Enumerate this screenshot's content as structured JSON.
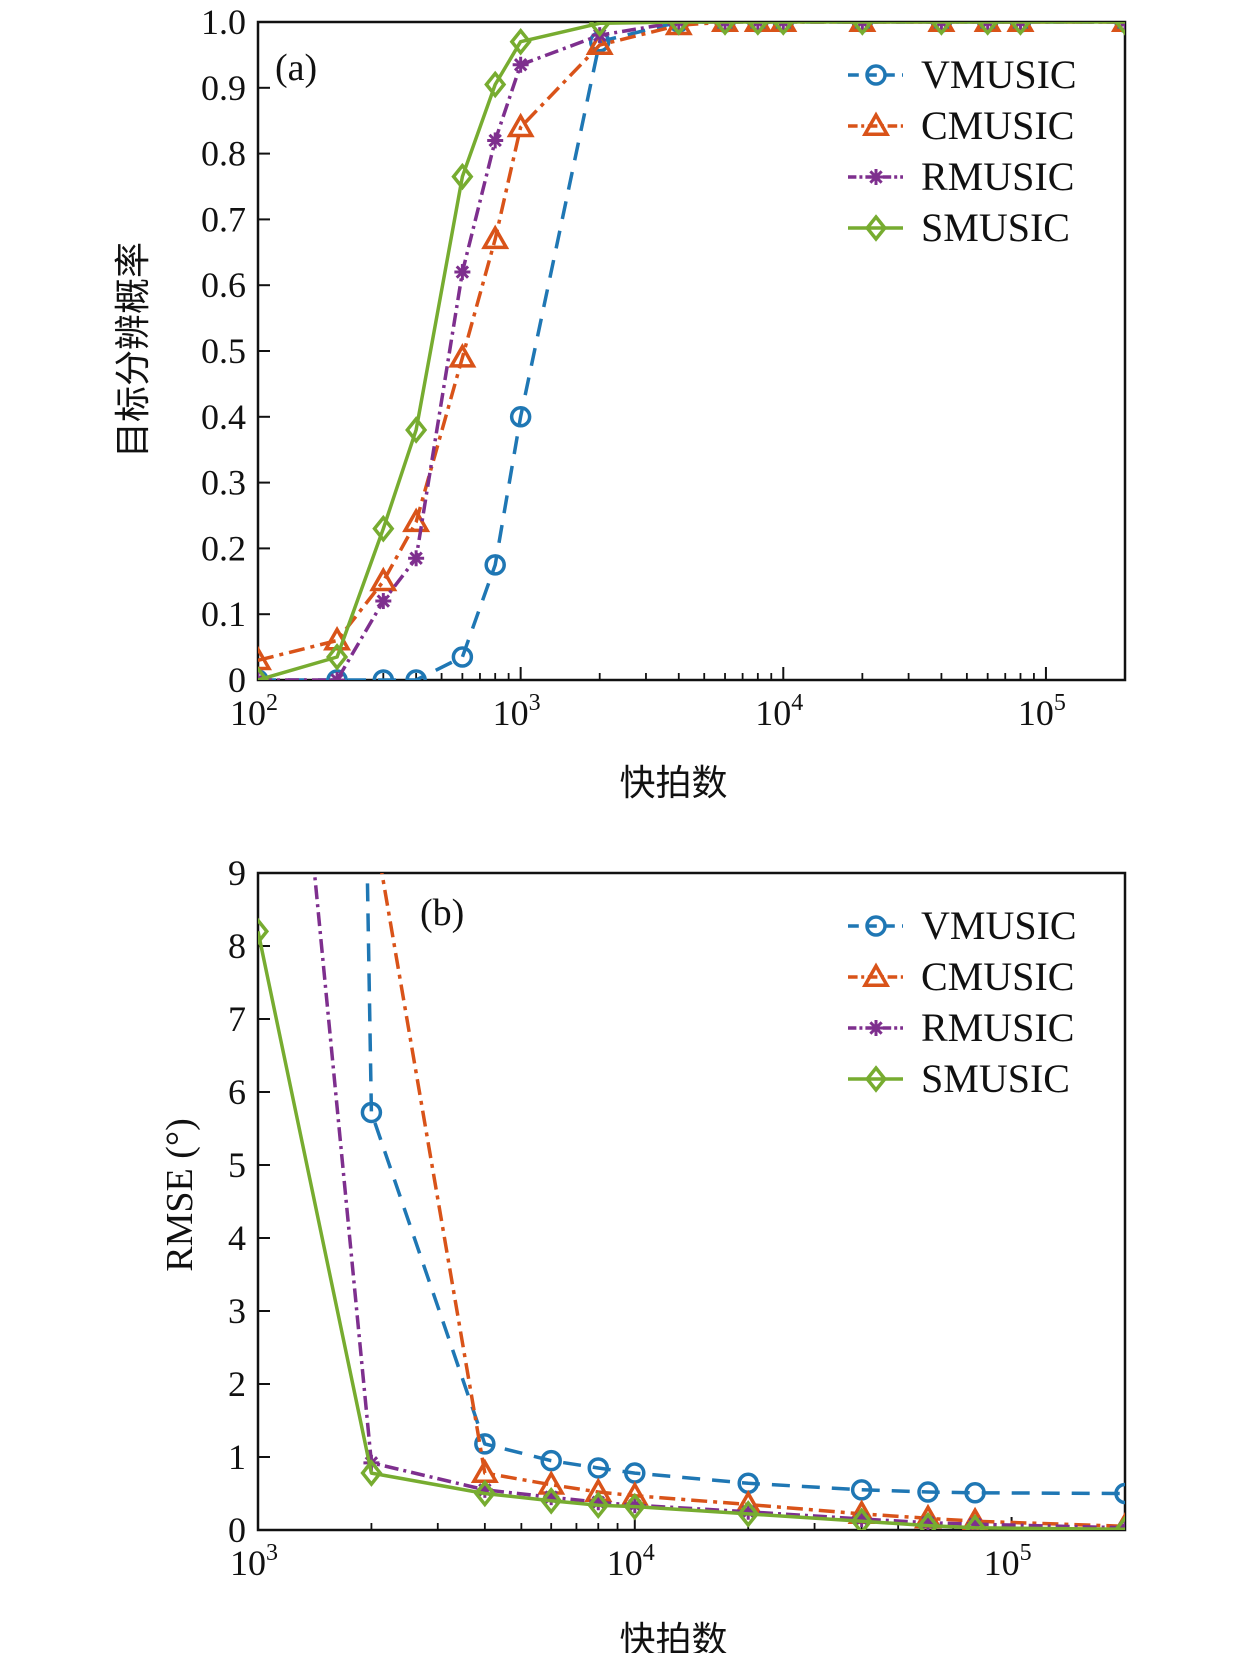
{
  "chart_data": [
    {
      "type": "line",
      "panel_label": "(a)",
      "xlabel": "快拍数",
      "ylabel": "目标分辨概率",
      "xscale": "log",
      "xlim": [
        100,
        200000
      ],
      "ylim": [
        0,
        1.0
      ],
      "x_ticks": [
        {
          "value": 100,
          "base": "10",
          "exp": "2"
        },
        {
          "value": 1000,
          "base": "10",
          "exp": "3"
        },
        {
          "value": 10000,
          "base": "10",
          "exp": "4"
        },
        {
          "value": 100000,
          "base": "10",
          "exp": "5"
        }
      ],
      "y_ticks": [
        {
          "value": 0,
          "label": "0"
        },
        {
          "value": 0.1,
          "label": "0.1"
        },
        {
          "value": 0.2,
          "label": "0.2"
        },
        {
          "value": 0.3,
          "label": "0.3"
        },
        {
          "value": 0.4,
          "label": "0.4"
        },
        {
          "value": 0.5,
          "label": "0.5"
        },
        {
          "value": 0.6,
          "label": "0.6"
        },
        {
          "value": 0.7,
          "label": "0.7"
        },
        {
          "value": 0.8,
          "label": "0.8"
        },
        {
          "value": 0.9,
          "label": "0.9"
        },
        {
          "value": 1.0,
          "label": "1.0"
        }
      ],
      "legend_position": "top-right",
      "grid": false,
      "series": [
        {
          "name": "VMUSIC",
          "color": "#1f77b4",
          "marker": "circle",
          "dash": "18,12",
          "x": [
            100,
            200,
            300,
            400,
            600,
            800,
            1000,
            2000,
            4000,
            6000,
            8000,
            10000,
            20000,
            40000,
            60000,
            80000,
            200000
          ],
          "y": [
            0,
            0,
            0,
            0,
            0.035,
            0.175,
            0.4,
            0.97,
            1,
            1,
            1,
            1,
            1,
            1,
            1,
            1,
            1
          ]
        },
        {
          "name": "CMUSIC",
          "color": "#d95319",
          "marker": "triangle",
          "dash": "16,6,4,6",
          "x": [
            100,
            200,
            300,
            400,
            600,
            800,
            1000,
            2000,
            4000,
            6000,
            8000,
            10000,
            20000,
            40000,
            60000,
            80000,
            200000
          ],
          "y": [
            0.03,
            0.06,
            0.15,
            0.24,
            0.49,
            0.67,
            0.84,
            0.965,
            0.995,
            1,
            1,
            1,
            1,
            1,
            1,
            1,
            1
          ]
        },
        {
          "name": "RMUSIC",
          "color": "#7e2f8e",
          "marker": "asterisk",
          "dash": "14,5,3,5",
          "x": [
            100,
            200,
            300,
            400,
            600,
            800,
            1000,
            2000,
            4000,
            6000,
            8000,
            10000,
            20000,
            40000,
            60000,
            80000,
            200000
          ],
          "y": [
            0,
            0,
            0.12,
            0.185,
            0.62,
            0.82,
            0.935,
            0.98,
            1,
            1,
            1,
            1,
            1,
            1,
            1,
            1,
            1
          ]
        },
        {
          "name": "SMUSIC",
          "color": "#77ac30",
          "marker": "diamond",
          "dash": "",
          "x": [
            100,
            200,
            300,
            400,
            600,
            800,
            1000,
            2000,
            4000,
            6000,
            8000,
            10000,
            20000,
            40000,
            60000,
            80000,
            200000
          ],
          "y": [
            0,
            0.035,
            0.23,
            0.38,
            0.765,
            0.905,
            0.97,
            0.998,
            1,
            1,
            1,
            1,
            1,
            1,
            1,
            1,
            1
          ]
        }
      ]
    },
    {
      "type": "line",
      "panel_label": "(b)",
      "xlabel": "快拍数",
      "ylabel": "RMSE (°)",
      "xscale": "log",
      "xlim": [
        1000,
        200000
      ],
      "ylim": [
        0,
        9
      ],
      "x_ticks": [
        {
          "value": 1000,
          "base": "10",
          "exp": "3"
        },
        {
          "value": 10000,
          "base": "10",
          "exp": "4"
        },
        {
          "value": 100000,
          "base": "10",
          "exp": "5"
        }
      ],
      "y_ticks": [
        {
          "value": 0,
          "label": "0"
        },
        {
          "value": 1,
          "label": "1"
        },
        {
          "value": 2,
          "label": "2"
        },
        {
          "value": 3,
          "label": "3"
        },
        {
          "value": 4,
          "label": "4"
        },
        {
          "value": 5,
          "label": "5"
        },
        {
          "value": 6,
          "label": "6"
        },
        {
          "value": 7,
          "label": "7"
        },
        {
          "value": 8,
          "label": "8"
        },
        {
          "value": 9,
          "label": "9"
        }
      ],
      "legend_position": "top-right",
      "grid": false,
      "series": [
        {
          "name": "VMUSIC",
          "color": "#1f77b4",
          "marker": "circle",
          "dash": "18,12",
          "x": [
            1800,
            1950,
            2000,
            4000,
            6000,
            8000,
            10000,
            20000,
            40000,
            60000,
            80000,
            200000
          ],
          "y": [
            9.2,
            9.0,
            5.72,
            1.18,
            0.95,
            0.85,
            0.78,
            0.64,
            0.55,
            0.52,
            0.51,
            0.5
          ],
          "marker_from": 2
        },
        {
          "name": "CMUSIC",
          "color": "#d95319",
          "marker": "triangle",
          "dash": "16,6,4,6",
          "x": [
            2100,
            4000,
            6000,
            8000,
            10000,
            20000,
            40000,
            60000,
            80000,
            200000
          ],
          "y": [
            9.2,
            0.78,
            0.62,
            0.52,
            0.47,
            0.35,
            0.22,
            0.16,
            0.12,
            0.05
          ],
          "marker_from": 1
        },
        {
          "name": "RMUSIC",
          "color": "#7e2f8e",
          "marker": "asterisk",
          "dash": "14,5,3,5",
          "x": [
            1400,
            2000,
            4000,
            6000,
            8000,
            10000,
            20000,
            40000,
            60000,
            80000,
            200000
          ],
          "y": [
            9.2,
            0.92,
            0.55,
            0.45,
            0.38,
            0.34,
            0.25,
            0.15,
            0.1,
            0.08,
            0.03
          ],
          "marker_from": 1
        },
        {
          "name": "SMUSIC",
          "color": "#77ac30",
          "marker": "diamond",
          "dash": "",
          "x": [
            1000,
            2000,
            4000,
            6000,
            8000,
            10000,
            20000,
            40000,
            60000,
            80000,
            200000
          ],
          "y": [
            8.2,
            0.78,
            0.5,
            0.4,
            0.34,
            0.32,
            0.22,
            0.12,
            0.06,
            0.03,
            0.01
          ],
          "marker_from": 0
        }
      ]
    }
  ]
}
